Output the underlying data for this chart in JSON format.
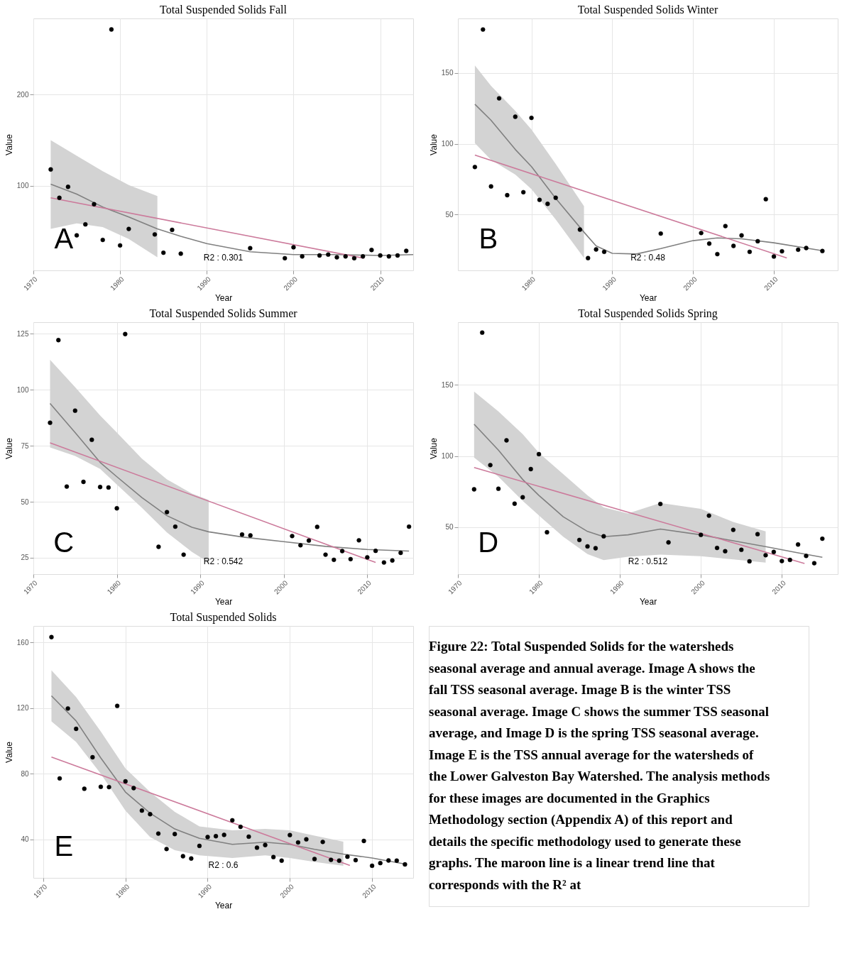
{
  "chart_data": [
    {
      "type": "scatter",
      "title": "Total Suspended Solids Fall",
      "xlabel": "Year",
      "ylabel": "Value",
      "xlim": [
        1970,
        2013.8
      ],
      "ylim": [
        7.7,
        283
      ],
      "xticks": [
        1970,
        1980,
        1990,
        2000,
        2010
      ],
      "yticks": [
        100,
        200
      ],
      "grid": true,
      "annotations": [
        "A",
        "R2 : 0.301"
      ],
      "series": [
        {
          "type": "line",
          "color": "#808080",
          "x": [
            1972,
            1975,
            1978,
            1981,
            1984.3,
            1987,
            1990,
            1995,
            2000,
            2005,
            2010,
            2013.8
          ],
          "values": [
            102,
            91,
            77,
            66,
            53,
            45,
            37,
            28,
            25,
            25,
            24,
            25
          ],
          "upper": [
            150,
            133,
            116,
            101,
            89,
            null,
            null,
            null,
            null,
            null,
            null,
            null
          ],
          "lower": [
            53,
            59,
            55,
            42,
            22,
            null,
            null,
            null,
            null,
            null,
            null,
            null
          ]
        },
        {
          "type": "line",
          "color": "#cc7a9b",
          "x": [
            1972,
            2008.1
          ],
          "values": [
            87,
            21
          ]
        },
        {
          "type": "scatter",
          "color": "#000000",
          "marker": "circle",
          "x": [
            1972,
            1973,
            1974,
            1975,
            1976,
            1977,
            1978,
            1979,
            1980,
            1981,
            1984,
            1985,
            1986,
            1987,
            1995,
            1999,
            2000,
            2001,
            2003,
            2004,
            2005,
            2006,
            2007,
            2008,
            2009,
            2010,
            2011,
            2012,
            2013
          ],
          "values": [
            118,
            87,
            99,
            46,
            58,
            80,
            41,
            271,
            35,
            53,
            47,
            27,
            52,
            26,
            32,
            21,
            33,
            23,
            24,
            25,
            22,
            23,
            21,
            23,
            30,
            24,
            23,
            24,
            29
          ]
        }
      ]
    },
    {
      "type": "scatter",
      "title": "Total Suspended Solids Winter",
      "xlabel": "Year",
      "ylabel": "Value",
      "xlim": [
        1970.9,
        2017.9
      ],
      "ylim": [
        10.6,
        188.5
      ],
      "xticks": [
        1980,
        1990,
        2000,
        2010
      ],
      "yticks": [
        50,
        100,
        150
      ],
      "grid": true,
      "annotations": [
        "B",
        "R2 : 0.48"
      ],
      "series": [
        {
          "type": "line",
          "color": "#808080",
          "x": [
            1973,
            1975,
            1978,
            1980,
            1983,
            1986.5,
            1988,
            1990,
            1993,
            1996,
            2000,
            2003,
            2006,
            2010,
            2016
          ],
          "values": [
            127.9,
            116.6,
            96,
            83.9,
            61.5,
            37.6,
            27.9,
            22.6,
            22.2,
            26,
            31.6,
            33.5,
            32.9,
            30.1,
            24.5
          ],
          "upper": [
            155.3,
            140.9,
            123.2,
            110.1,
            85.8,
            55.9,
            null,
            null,
            null,
            null,
            null,
            null,
            null,
            null,
            null
          ],
          "lower": [
            100.4,
            88.6,
            78.3,
            68,
            46.5,
            19.4,
            null,
            null,
            null,
            null,
            null,
            null,
            null,
            null,
            null
          ]
        },
        {
          "type": "line",
          "color": "#cc7a9b",
          "x": [
            1973,
            2011.6
          ],
          "values": [
            92,
            19.4
          ]
        },
        {
          "type": "scatter",
          "color": "#000000",
          "marker": "circle",
          "x": [
            1973,
            1974,
            1975,
            1976,
            1977,
            1978,
            1979,
            1980,
            1981,
            1982,
            1983,
            1986,
            1987,
            1988,
            1989,
            1996,
            2001,
            2002,
            2003,
            2004,
            2005,
            2006,
            2007,
            2008,
            2009,
            2010,
            2011,
            2013,
            2014,
            2016
          ],
          "values": [
            83.6,
            180.7,
            69.9,
            132.1,
            63.7,
            119.1,
            65.8,
            118.3,
            60.4,
            57.6,
            61.9,
            39.4,
            19.3,
            25.4,
            23.7,
            36.6,
            37.0,
            29.5,
            22.1,
            41.9,
            27.9,
            35.3,
            23.7,
            31.2,
            60.9,
            20.4,
            24.1,
            25.2,
            26.4,
            24.3
          ]
        }
      ]
    },
    {
      "type": "scatter",
      "title": "Total Suspended Solids Summer",
      "xlabel": "Year",
      "ylabel": "Value",
      "xlim": [
        1970,
        2015.5
      ],
      "ylim": [
        17.7,
        130.2
      ],
      "xticks": [
        1970,
        1980,
        1990,
        2000,
        2010
      ],
      "yticks": [
        25,
        50,
        75,
        100,
        125
      ],
      "grid": true,
      "annotations": [
        "C",
        "R2 : 0.542"
      ],
      "series": [
        {
          "type": "line",
          "color": "#808080",
          "x": [
            1972,
            1975,
            1978,
            1980,
            1983,
            1986,
            1989,
            1991,
            1995,
            2000,
            2005,
            2010,
            2015
          ],
          "values": [
            93.9,
            80.9,
            67.6,
            61.2,
            51.9,
            43.8,
            38.6,
            36.6,
            34.3,
            32.2,
            30.1,
            28.7,
            28
          ],
          "upper": [
            113.4,
            101.2,
            88.5,
            80.9,
            69.3,
            60,
            53.7,
            50.8,
            null,
            null,
            null,
            null,
            null
          ],
          "lower": [
            74.3,
            70.5,
            64.7,
            57.7,
            47.3,
            36.3,
            27.6,
            22.9,
            null,
            null,
            null,
            null,
            null
          ]
        },
        {
          "type": "line",
          "color": "#cc7a9b",
          "x": [
            1972,
            2011
          ],
          "values": [
            76.3,
            22.9
          ]
        },
        {
          "type": "scatter",
          "color": "#000000",
          "marker": "circle",
          "x": [
            1972,
            1973,
            1974,
            1975,
            1976,
            1977,
            1978,
            1979,
            1980,
            1981,
            1985,
            1986,
            1987,
            1988,
            1995,
            1996,
            2001,
            2002,
            2003,
            2004,
            2005,
            2006,
            2007,
            2008,
            2009,
            2010,
            2011,
            2012,
            2013,
            2014,
            2015
          ],
          "values": [
            85.3,
            122.2,
            56.8,
            90.7,
            58.9,
            77.7,
            56.6,
            56.4,
            47.1,
            124.9,
            29.9,
            45.4,
            38.9,
            26.4,
            35.4,
            35.0,
            34.7,
            30.6,
            32.7,
            38.8,
            26.4,
            24.1,
            28.0,
            24.4,
            32.8,
            25.2,
            28.1,
            22.9,
            23.8,
            27.2,
            38.9
          ]
        }
      ]
    },
    {
      "type": "scatter",
      "title": "Total Suspended Solids Spring",
      "xlabel": "Year",
      "ylabel": "Value",
      "xlim": [
        1970,
        2016.9
      ],
      "ylim": [
        17,
        194
      ],
      "xticks": [
        1970,
        1980,
        1990,
        2000,
        2010
      ],
      "yticks": [
        50,
        100,
        150
      ],
      "grid": true,
      "annotations": [
        "D",
        "R2 : 0.512"
      ],
      "series": [
        {
          "type": "line",
          "color": "#808080",
          "x": [
            1972,
            1975,
            1978,
            1980,
            1983,
            1986,
            1988,
            1991,
            1995,
            2000,
            2004,
            2008,
            2012,
            2015
          ],
          "values": [
            122.3,
            104.1,
            83.5,
            72.3,
            57.3,
            47,
            43.3,
            44.6,
            48.7,
            44.6,
            40.4,
            36.3,
            32,
            28.8
          ],
          "upper": [
            145.3,
            131.3,
            115.4,
            102.2,
            87.3,
            72.3,
            63.9,
            59.6,
            67,
            62.9,
            53.6,
            47,
            null,
            null
          ],
          "lower": [
            98.9,
            85.4,
            68.5,
            58.2,
            43.3,
            31.1,
            26.8,
            29.2,
            30.7,
            29.6,
            27.3,
            25.1,
            null,
            null
          ]
        },
        {
          "type": "line",
          "color": "#cc7a9b",
          "x": [
            1972,
            2012.8
          ],
          "values": [
            91.9,
            24.5
          ]
        },
        {
          "type": "scatter",
          "color": "#000000",
          "marker": "circle",
          "x": [
            1972,
            1973,
            1974,
            1975,
            1976,
            1977,
            1978,
            1979,
            1980,
            1981,
            1985,
            1986,
            1987,
            1988,
            1995,
            1996,
            2000,
            2001,
            2002,
            2003,
            2004,
            2005,
            2006,
            2007,
            2008,
            2009,
            2010,
            2011,
            2012,
            2013,
            2014,
            2015
          ],
          "values": [
            76.6,
            186.7,
            93.6,
            77.0,
            111.0,
            66.5,
            71.0,
            90.8,
            101.3,
            46.4,
            41.0,
            36.5,
            35.2,
            43.6,
            66.3,
            39.3,
            44.6,
            58.1,
            35.4,
            33.1,
            48.1,
            34.1,
            26.0,
            45.1,
            30.3,
            32.6,
            26.2,
            27.0,
            37.8,
            29.8,
            24.7,
            41.9
          ]
        }
      ]
    },
    {
      "type": "scatter",
      "title": "Total Suspended Solids",
      "xlabel": "Year",
      "ylabel": "Value",
      "xlim": [
        1968.8,
        2015
      ],
      "ylim": [
        16.5,
        170
      ],
      "xticks": [
        1970,
        1980,
        1990,
        2000,
        2010
      ],
      "yticks": [
        40,
        80,
        120,
        160
      ],
      "grid": true,
      "annotations": [
        "E",
        "R2 : 0.6"
      ],
      "series": [
        {
          "type": "line",
          "color": "#808080",
          "x": [
            1971,
            1974,
            1977,
            1980,
            1983,
            1986,
            1989,
            1993,
            1997,
            2000,
            2003,
            2006.5,
            2010,
            2014
          ],
          "values": [
            127.4,
            112.1,
            89.6,
            68.8,
            55.9,
            46.3,
            40.6,
            36.9,
            38.2,
            36.9,
            33.9,
            31,
            28.6,
            24.9
          ],
          "upper": [
            143,
            126.6,
            105.7,
            83.2,
            68.8,
            56.7,
            47.9,
            45.5,
            46.3,
            45.5,
            42.2,
            38.6,
            null,
            null
          ],
          "lower": [
            111.8,
            99.3,
            80,
            57.5,
            41.4,
            33.4,
            30.2,
            28.6,
            30.2,
            28.6,
            26.2,
            23.8,
            null,
            null
          ]
        },
        {
          "type": "line",
          "color": "#cc7a9b",
          "x": [
            1971,
            2007.3
          ],
          "values": [
            90.1,
            24.1
          ]
        },
        {
          "type": "scatter",
          "color": "#000000",
          "marker": "circle",
          "x": [
            1971,
            1972,
            1973,
            1974,
            1975,
            1976,
            1977,
            1978,
            1979,
            1980,
            1981,
            1982,
            1983,
            1984,
            1985,
            1986,
            1987,
            1988,
            1989,
            1990,
            1991,
            1992,
            1993,
            1994,
            1995,
            1996,
            1997,
            1998,
            1999,
            2000,
            2001,
            2002,
            2003,
            2004,
            2005,
            2006,
            2007,
            2008,
            2009,
            2010,
            2011,
            2012,
            2013,
            2014
          ],
          "values": [
            163.2,
            77.1,
            119.7,
            107.3,
            70.8,
            90,
            72,
            71.8,
            121.3,
            75.3,
            71.2,
            57.5,
            55.3,
            43.5,
            34.1,
            43.2,
            29.7,
            28.3,
            36,
            41.4,
            41.9,
            42.7,
            51.6,
            47.6,
            41.6,
            34.9,
            36.5,
            29.2,
            27,
            42.6,
            38.1,
            40,
            28,
            38.4,
            27.5,
            27,
            29.4,
            27.3,
            39,
            23.9,
            25.5,
            27.1,
            27,
            24.7
          ]
        }
      ]
    },
    {
      "type": "other",
      "annotations": [
        "Figure 22: Total Suspended Solids for the watersheds seasonal average and annual average. Image A shows the fall TSS seasonal average. Image B is the winter TSS seasonal average. Image C shows the summer TSS seasonal average, and Image D is the spring TSS seasonal average. Image E is the TSS annual average for the watersheds of the Lower Galveston Bay Watershed. The analysis methods for these images are documented in the Graphics Methodology section (Appendix A) of this report and details the specific methodology used to generate these graphs. The maroon line is a linear trend line that corresponds with the R² at"
      ]
    }
  ]
}
